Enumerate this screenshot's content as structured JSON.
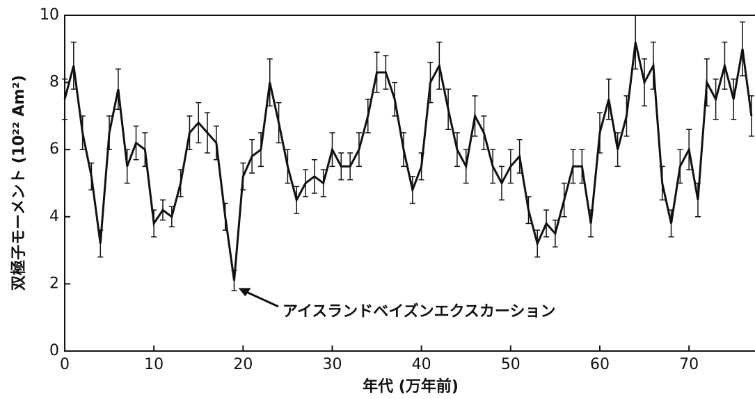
{
  "chart_data": {
    "type": "line",
    "xlabel": "年代 (万年前)",
    "ylabel": "双極子モーメント (10²² Am²)",
    "annotation": "アイスランドベイズンエクスカーション",
    "x": [
      0,
      1,
      2,
      3,
      4,
      5,
      6,
      7,
      8,
      9,
      10,
      11,
      12,
      13,
      14,
      15,
      16,
      17,
      18,
      19,
      20,
      21,
      22,
      23,
      24,
      25,
      26,
      27,
      28,
      29,
      30,
      31,
      32,
      33,
      34,
      35,
      36,
      37,
      38,
      39,
      40,
      41,
      42,
      43,
      44,
      45,
      46,
      47,
      48,
      49,
      50,
      51,
      52,
      53,
      54,
      55,
      56,
      57,
      58,
      59,
      60,
      61,
      62,
      63,
      64,
      65,
      66,
      67,
      68,
      69,
      70,
      71,
      72,
      73,
      74,
      75,
      76,
      77
    ],
    "series": [
      {
        "name": "dipole",
        "color": "#111111",
        "values": [
          7.5,
          8.5,
          6.5,
          5.2,
          3.2,
          6.5,
          7.8,
          5.5,
          6.2,
          6.0,
          3.8,
          4.2,
          4.0,
          5.0,
          6.5,
          6.8,
          6.5,
          6.2,
          4.0,
          2.1,
          5.2,
          5.8,
          6.0,
          8.0,
          6.8,
          5.5,
          4.5,
          5.0,
          5.2,
          5.0,
          6.0,
          5.5,
          5.5,
          6.0,
          7.0,
          8.3,
          8.3,
          7.5,
          6.0,
          4.8,
          5.5,
          8.0,
          8.5,
          7.2,
          6.0,
          5.5,
          7.0,
          6.5,
          5.5,
          5.0,
          5.5,
          5.8,
          4.2,
          3.2,
          3.8,
          3.5,
          4.5,
          5.5,
          5.5,
          3.8,
          6.5,
          7.5,
          6.0,
          7.0,
          9.2,
          8.0,
          8.5,
          5.0,
          3.8,
          5.5,
          6.0,
          4.5,
          8.0,
          7.5,
          8.5,
          7.5,
          9.0,
          7.0
        ],
        "errors": [
          0.6,
          0.7,
          0.5,
          0.4,
          0.4,
          0.5,
          0.6,
          0.5,
          0.5,
          0.5,
          0.4,
          0.3,
          0.3,
          0.4,
          0.5,
          0.6,
          0.6,
          0.5,
          0.4,
          0.3,
          0.4,
          0.5,
          0.5,
          0.7,
          0.6,
          0.5,
          0.4,
          0.4,
          0.5,
          0.4,
          0.5,
          0.4,
          0.4,
          0.5,
          0.5,
          0.6,
          0.5,
          0.5,
          0.5,
          0.4,
          0.4,
          0.6,
          0.7,
          0.6,
          0.5,
          0.5,
          0.6,
          0.5,
          0.5,
          0.5,
          0.5,
          0.5,
          0.4,
          0.4,
          0.4,
          0.4,
          0.5,
          0.5,
          0.5,
          0.4,
          0.6,
          0.6,
          0.5,
          0.6,
          0.8,
          0.7,
          0.7,
          0.5,
          0.4,
          0.5,
          0.6,
          0.5,
          0.7,
          0.6,
          0.7,
          0.6,
          0.8,
          0.6
        ]
      }
    ],
    "xlim": [
      0,
      77.4
    ],
    "ylim": [
      0,
      10
    ],
    "xticks": [
      0,
      10,
      20,
      30,
      40,
      50,
      60,
      70
    ],
    "yticks": [
      0,
      2,
      4,
      6,
      8,
      10
    ],
    "annotation_point": [
      19,
      2
    ]
  }
}
